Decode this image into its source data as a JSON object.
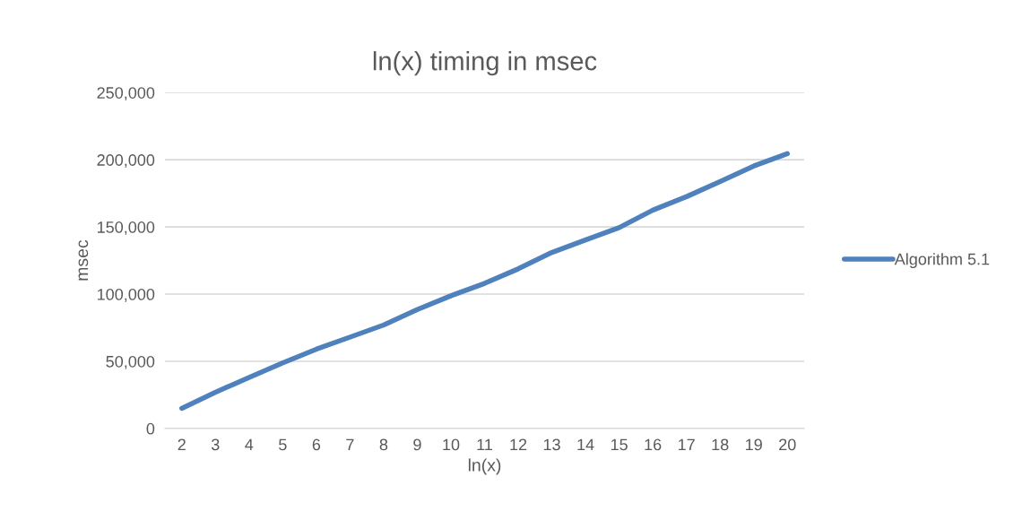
{
  "chart_data": {
    "type": "line",
    "title": "ln(x) timing in msec",
    "xlabel": "ln(x)",
    "ylabel": "msec",
    "categories": [
      "2",
      "3",
      "4",
      "5",
      "6",
      "7",
      "8",
      "9",
      "10",
      "11",
      "12",
      "13",
      "14",
      "15",
      "16",
      "17",
      "18",
      "19",
      "20"
    ],
    "series": [
      {
        "name": "Algorithm 5.1",
        "color": "#4f81bd",
        "values": [
          15000,
          27000,
          38000,
          48800,
          59000,
          68000,
          77000,
          88500,
          98800,
          108000,
          118800,
          131000,
          140300,
          149500,
          162500,
          172500,
          183800,
          195300,
          204500
        ]
      }
    ],
    "ylim": [
      0,
      250000
    ],
    "yticks": [
      {
        "value": 0,
        "label": "0"
      },
      {
        "value": 50000,
        "label": "50,000"
      },
      {
        "value": 100000,
        "label": "100,000"
      },
      {
        "value": 150000,
        "label": "150,000"
      },
      {
        "value": 200000,
        "label": "200,000"
      },
      {
        "value": 250000,
        "label": "250,000"
      }
    ],
    "grid": "y",
    "legend": "right",
    "marker": "none",
    "line_style": "solid"
  }
}
